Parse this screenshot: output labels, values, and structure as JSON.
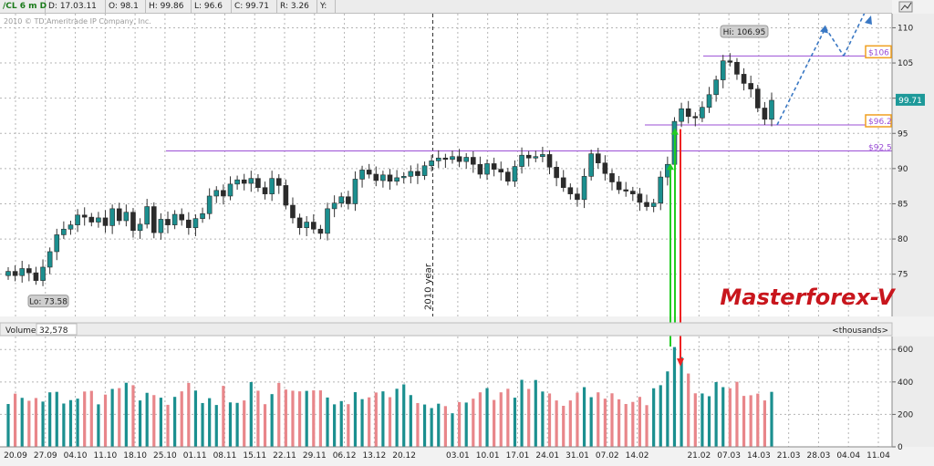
{
  "header": {
    "symbol": "/CL 6 m D",
    "date": "D: 17.03.11",
    "open": "O: 98.1",
    "high": "H: 99.86",
    "low": "L: 96.6",
    "close": "C: 99.71",
    "range": "R: 3.26",
    "y": "Y:",
    "copyright": "2010 © TD Ameritrade IP Company, Inc."
  },
  "watermark": "Masterforex-V",
  "colors": {
    "up": "#1b8f8f",
    "down": "#e8868a",
    "level": "#9b4fd6",
    "forecast": "#3a78c4",
    "price_badge": "#1d9999",
    "label_box": "#f0a020",
    "buy_arrow": "#22cc22",
    "sell_arrow": "#ee2222"
  },
  "chart_data": [
    {
      "type": "candlestick",
      "symbol": "/CL",
      "ylim": [
        69,
        112
      ],
      "y_ticks": [
        75,
        80,
        85,
        90,
        95,
        100,
        105,
        110
      ],
      "x_ticks": [
        "20.09",
        "27.09",
        "04.10",
        "11.10",
        "18.10",
        "25.10",
        "01.11",
        "08.11",
        "15.11",
        "22.11",
        "29.11",
        "06.12",
        "13.12",
        "20.12",
        "03.01",
        "10.01",
        "17.01",
        "24.01",
        "31.01",
        "07.02",
        "14.02",
        "21.02",
        "07.03",
        "14.03",
        "21.03",
        "28.03",
        "04.04",
        "11.04"
      ],
      "separator_label": "2010 year",
      "price": 99.71,
      "hi_label": "Hi: 106.95",
      "lo_label": "Lo: 73.58",
      "levels": [
        {
          "value": 106,
          "label": "$106",
          "boxed": true
        },
        {
          "value": 96.2,
          "label": "$96.2",
          "boxed": true
        },
        {
          "value": 92.5,
          "label": "$92.5",
          "boxed": false
        }
      ],
      "forecast_path": [
        [
          96.2,
          0
        ],
        [
          110,
          1
        ],
        [
          106,
          2
        ],
        [
          114,
          3
        ]
      ],
      "closes": [
        75.4,
        74.8,
        75.8,
        75.2,
        74.1,
        76.0,
        78.2,
        80.6,
        81.4,
        82.0,
        83.4,
        83.1,
        82.4,
        83.0,
        81.9,
        84.3,
        82.6,
        83.8,
        81.2,
        82.1,
        84.6,
        80.9,
        82.8,
        82.0,
        83.5,
        82.7,
        81.6,
        82.9,
        83.6,
        86.1,
        86.9,
        86.1,
        87.8,
        88.4,
        87.9,
        88.6,
        87.3,
        86.4,
        88.6,
        87.6,
        84.8,
        83.0,
        81.6,
        82.4,
        81.4,
        80.8,
        84.3,
        85.1,
        86.0,
        85.0,
        88.5,
        89.8,
        89.2,
        88.3,
        89.1,
        88.2,
        88.7,
        88.9,
        89.6,
        89.0,
        90.4,
        91.1,
        91.5,
        91.3,
        91.7,
        91.0,
        91.6,
        90.6,
        89.2,
        90.7,
        89.9,
        89.5,
        88.2,
        90.3,
        91.9,
        91.5,
        91.7,
        92.0,
        90.2,
        88.7,
        87.3,
        86.4,
        85.6,
        88.9,
        92.1,
        90.8,
        89.3,
        88.1,
        87.0,
        86.8,
        86.4,
        85.2,
        84.6,
        85.1,
        88.8,
        90.6,
        96.7,
        98.5,
        97.4,
        97.2,
        98.7,
        100.5,
        102.6,
        105.3,
        105.1,
        103.4,
        102.1,
        101.3,
        98.6,
        97.0,
        99.7
      ],
      "volume_unit": "thousands",
      "volume_now": "32,578",
      "volume_ticks": [
        0,
        200,
        400,
        600
      ],
      "volume": [
        264,
        328,
        302,
        284,
        301,
        279,
        336,
        339,
        267,
        288,
        297,
        341,
        345,
        262,
        322,
        357,
        362,
        395,
        380,
        286,
        333,
        319,
        303,
        259,
        308,
        342,
        394,
        347,
        270,
        300,
        258,
        376,
        274,
        271,
        286,
        399,
        346,
        263,
        325,
        394,
        353,
        346,
        342,
        345,
        348,
        348,
        304,
        262,
        282,
        263,
        337,
        294,
        305,
        335,
        342,
        306,
        358,
        385,
        319,
        270,
        261,
        239,
        266,
        251,
        207,
        276,
        273,
        297,
        336,
        362,
        289,
        336,
        358,
        303,
        413,
        357,
        412,
        341,
        329,
        286,
        253,
        286,
        334,
        368,
        306,
        336,
        297,
        330,
        293,
        264,
        277,
        308,
        257,
        361,
        380,
        465,
        615,
        553,
        452,
        330,
        329,
        312,
        399,
        368,
        361,
        401,
        314,
        318,
        328,
        286,
        339
      ]
    }
  ]
}
